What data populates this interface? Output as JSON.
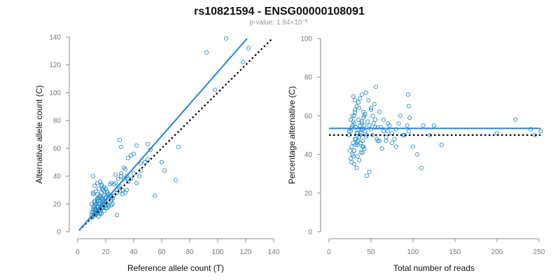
{
  "figure": {
    "title": "rs10821594 - ENSG00000108091",
    "subtitle_prefix": "p-value: 1.94×10",
    "subtitle_exponent": "−9"
  },
  "colors": {
    "point": "#2b90c8",
    "fit_line": "#1f86e0",
    "reference_line": "#000000",
    "axis": "#888888",
    "tick_text": "#777777"
  },
  "chart_data": [
    {
      "type": "scatter",
      "xlabel": "Reference allele count (T)",
      "ylabel": "Alternative allele count (C)",
      "xlim": [
        0,
        140
      ],
      "ylim": [
        0,
        140
      ],
      "xticks": [
        0,
        20,
        40,
        60,
        80,
        100,
        120,
        140
      ],
      "yticks": [
        0,
        20,
        40,
        60,
        80,
        100,
        120,
        140
      ],
      "tick_labels_x": [
        "0",
        "20",
        "40",
        "60",
        "80",
        "100",
        "120",
        "140"
      ],
      "tick_labels_y": [
        "0",
        "20",
        "40",
        "60",
        "80",
        "100",
        "120",
        "140"
      ],
      "fit_line": {
        "x": [
          1,
          121
        ],
        "y": [
          1,
          139
        ]
      },
      "reference_line": {
        "x": [
          1,
          139
        ],
        "y": [
          1,
          139
        ]
      },
      "points": {
        "x": [
          10,
          11,
          12,
          13,
          14,
          15,
          16,
          17,
          18,
          19,
          20,
          11,
          13,
          15,
          17,
          19,
          21,
          12,
          14,
          16,
          18,
          20,
          10,
          12,
          14,
          16,
          18,
          11,
          13,
          15,
          17,
          19,
          12,
          14,
          16,
          10,
          11,
          12,
          13,
          14,
          15,
          16,
          17,
          18,
          19,
          20,
          21,
          22,
          23,
          24,
          11,
          13,
          15,
          17,
          12,
          14,
          16,
          18,
          20,
          22,
          10,
          12,
          14,
          16,
          13,
          15,
          11,
          12,
          14,
          16,
          18,
          20,
          22,
          24,
          26,
          28,
          30,
          32,
          34,
          35,
          36,
          38,
          40,
          42,
          44,
          45,
          27,
          29,
          31,
          33,
          25,
          23,
          21,
          19,
          17,
          30,
          31,
          34,
          36,
          38,
          42,
          45,
          48,
          50,
          52,
          55,
          60,
          62,
          70,
          72,
          92,
          98,
          106,
          118,
          122,
          50,
          40,
          28,
          33,
          22,
          18,
          14,
          12,
          19,
          24,
          26,
          30,
          27,
          35,
          20,
          16,
          11,
          12,
          13,
          25,
          28,
          23,
          31,
          24,
          36,
          15,
          17,
          19,
          21,
          22,
          18,
          20,
          24,
          29,
          32,
          14,
          16,
          12
        ],
        "y": [
          12,
          14,
          15,
          16,
          18,
          20,
          17,
          19,
          21,
          22,
          24,
          18,
          20,
          22,
          24,
          26,
          20,
          16,
          18,
          20,
          22,
          25,
          10,
          12,
          14,
          16,
          17,
          11,
          13,
          15,
          17,
          19,
          21,
          23,
          25,
          14,
          16,
          18,
          20,
          22,
          24,
          26,
          28,
          30,
          32,
          31,
          29,
          27,
          25,
          23,
          27,
          29,
          31,
          33,
          13,
          15,
          17,
          19,
          21,
          19,
          20,
          22,
          24,
          14,
          16,
          18,
          28,
          33,
          35,
          36,
          23,
          21,
          24,
          19,
          26,
          30,
          33,
          27,
          28,
          40,
          36,
          38,
          42,
          35,
          40,
          44,
          41,
          38,
          42,
          46,
          24,
          26,
          28,
          32,
          34,
          66,
          61,
          45,
          53,
          55,
          62,
          49,
          50,
          63,
          59,
          26,
          50,
          44,
          37,
          61,
          129,
          102,
          139,
          122,
          132,
          52,
          56,
          12,
          38,
          27,
          31,
          24,
          19,
          29,
          22,
          34,
          29,
          35,
          30,
          17,
          13,
          40,
          16,
          12,
          20,
          28,
          34,
          40,
          35,
          38,
          11,
          13,
          15,
          17,
          18,
          23,
          21,
          26,
          32,
          30,
          27,
          25,
          22
        ]
      }
    },
    {
      "type": "scatter",
      "xlabel": "Total number of reads",
      "ylabel": "Percentage alternative (C)",
      "xlim": [
        0,
        250
      ],
      "ylim": [
        0,
        100
      ],
      "xticks": [
        0,
        50,
        100,
        150,
        200,
        250
      ],
      "yticks": [
        0,
        20,
        40,
        60,
        80,
        100
      ],
      "tick_labels_x": [
        "0",
        "50",
        "100",
        "150",
        "200",
        "250"
      ],
      "tick_labels_y": [
        "0",
        "20",
        "40",
        "60",
        "80",
        "100"
      ],
      "fit_line": {
        "x": [
          0,
          252
        ],
        "y": [
          53.5,
          53.5
        ]
      },
      "reference_line": {
        "x": [
          0,
          252
        ],
        "y": [
          50,
          50
        ]
      },
      "points": {
        "x": [
          24,
          26,
          27,
          28,
          29,
          30,
          31,
          32,
          33,
          34,
          35,
          36,
          37,
          38,
          39,
          40,
          41,
          42,
          43,
          44,
          25,
          27,
          29,
          31,
          33,
          35,
          37,
          39,
          41,
          43,
          45,
          26,
          28,
          30,
          32,
          34,
          36,
          38,
          40,
          42,
          27,
          29,
          31,
          33,
          35,
          37,
          39,
          41,
          24,
          26,
          28,
          30,
          32,
          34,
          36,
          38,
          40,
          46,
          48,
          50,
          52,
          55,
          58,
          60,
          62,
          65,
          68,
          70,
          72,
          75,
          78,
          80,
          85,
          90,
          95,
          100,
          105,
          110,
          120,
          125,
          134,
          200,
          222,
          240,
          245,
          252,
          50,
          54,
          56,
          44,
          47,
          30,
          33,
          36,
          38,
          63,
          68,
          75,
          80,
          93,
          94,
          95,
          96,
          70,
          58,
          65,
          83,
          88,
          112,
          50,
          52,
          53,
          55,
          57,
          60,
          45,
          48,
          42,
          40,
          34,
          29,
          31
        ],
        "y": [
          50,
          52,
          54,
          55,
          57,
          60,
          62,
          48,
          46,
          45,
          58,
          64,
          50,
          53,
          56,
          47,
          44,
          60,
          52,
          49,
          42,
          44,
          46,
          48,
          51,
          53,
          55,
          57,
          59,
          61,
          50,
          38,
          40,
          42,
          45,
          47,
          49,
          51,
          53,
          55,
          36,
          39,
          63,
          65,
          67,
          69,
          71,
          62,
          52,
          58,
          60,
          56,
          54,
          51,
          49,
          46,
          44,
          57,
          55,
          53,
          50,
          58,
          47,
          62,
          54,
          52,
          49,
          56,
          55,
          51,
          48,
          53,
          60,
          50,
          52,
          44,
          40,
          33,
          50,
          55,
          45,
          51,
          58,
          53,
          50,
          52,
          64,
          66,
          75,
          72,
          68,
          35,
          33,
          37,
          41,
          43,
          47,
          46,
          44,
          55,
          71,
          65,
          59,
          52,
          54,
          58,
          56,
          50,
          55,
          63,
          60,
          56,
          54,
          48,
          47,
          29,
          31,
          43,
          41,
          39,
          70,
          68
        ]
      }
    }
  ]
}
